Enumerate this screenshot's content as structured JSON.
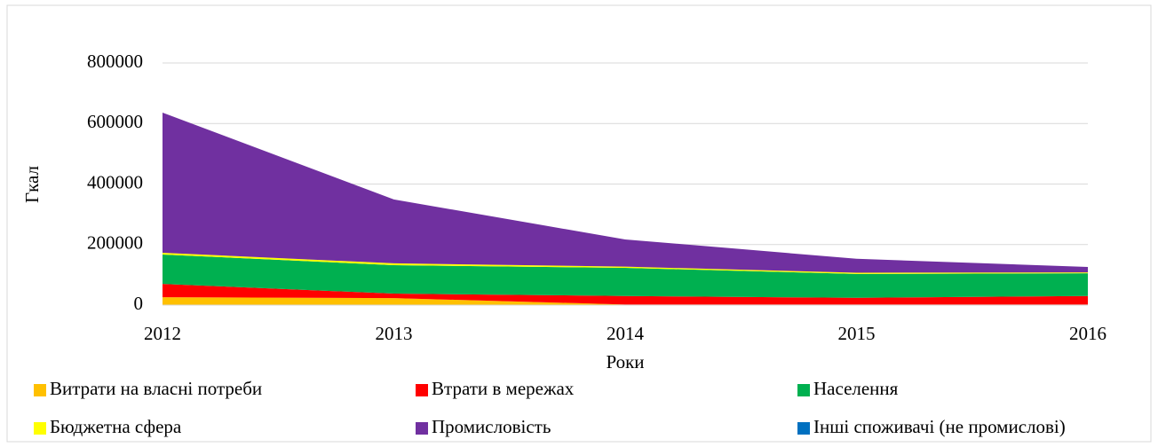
{
  "chart_data": {
    "type": "stacked_area",
    "ylabel": "Гкал",
    "xlabel": "Роки",
    "categories": [
      "2012",
      "2013",
      "2014",
      "2015",
      "2016"
    ],
    "ylim": [
      0,
      800000
    ],
    "yticks": [
      0,
      200000,
      400000,
      600000,
      800000
    ],
    "grid": true,
    "legend": "bottom",
    "series": [
      {
        "name": "Витрати на власні потреби",
        "color": "#ffc000",
        "values": [
          26000,
          23000,
          2000,
          2000,
          2000
        ]
      },
      {
        "name": "Втрати в мережах",
        "color": "#ff0000",
        "values": [
          44000,
          15000,
          28000,
          22000,
          28000
        ]
      },
      {
        "name": "Населення",
        "color": "#00b050",
        "values": [
          97000,
          94000,
          93000,
          79000,
          75000
        ]
      },
      {
        "name": "Бюджетна сфера",
        "color": "#ffff00",
        "values": [
          6000,
          6000,
          4000,
          4000,
          3000
        ]
      },
      {
        "name": "Промисловість",
        "color": "#7030a0",
        "values": [
          463000,
          211000,
          90000,
          46000,
          18000
        ]
      },
      {
        "name": "Інші споживачі (не промислові)",
        "color": "#0070c0",
        "values": [
          0,
          0,
          0,
          0,
          0
        ]
      }
    ]
  }
}
